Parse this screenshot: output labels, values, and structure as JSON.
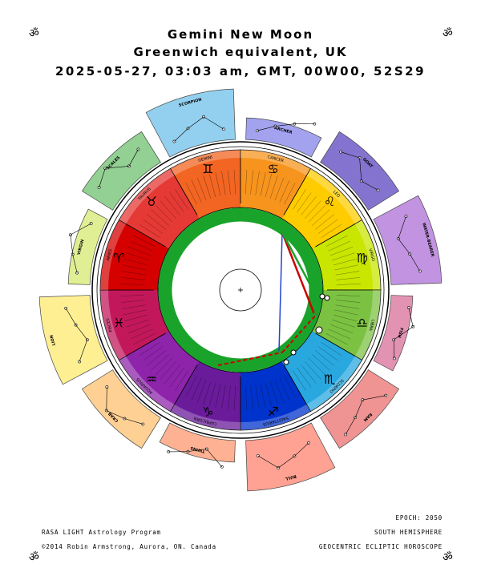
{
  "header": {
    "line1": "Gemini New Moon",
    "line2": "Greenwich equivalent, UK",
    "line3": "2025-05-27, 03:03 am, GMT,  00W00, 52S29"
  },
  "corner_symbol": "ॐ",
  "footer": {
    "epoch": "EPOCH: 2050",
    "program": "RASA LIGHT Astrology Program",
    "hemisphere": "SOUTH HEMISPHERE",
    "copyright": "©2014 Robin Armstrong, Aurora, ON. Canada",
    "projection": "GEOCENTRIC ECLIPTIC HOROSCOPE"
  },
  "wheel": {
    "signs": [
      {
        "name": "GEMINI",
        "glyph": "♊",
        "color": "#f26522"
      },
      {
        "name": "CANCER",
        "glyph": "♋",
        "color": "#f7941d"
      },
      {
        "name": "LEO",
        "glyph": "♌",
        "color": "#ffcc00"
      },
      {
        "name": "VIRGO",
        "glyph": "♍",
        "color": "#c8e600"
      },
      {
        "name": "LIBRA",
        "glyph": "♎",
        "color": "#7cc242"
      },
      {
        "name": "SCORPIO",
        "glyph": "♏",
        "color": "#29a8e0"
      },
      {
        "name": "SAGITTARIUS",
        "glyph": "♐",
        "color": "#0033cc"
      },
      {
        "name": "CAPRICORN",
        "glyph": "♑",
        "color": "#6a1b9a"
      },
      {
        "name": "AQUARIUS",
        "glyph": "♒",
        "color": "#8e24aa"
      },
      {
        "name": "PISCES",
        "glyph": "♓",
        "color": "#c2185b"
      },
      {
        "name": "ARIES",
        "glyph": "♈",
        "color": "#d50000"
      },
      {
        "name": "TAURUS",
        "glyph": "♉",
        "color": "#e53935"
      }
    ],
    "constellations": [
      {
        "name": "ARCHER",
        "color": "#9999ee"
      },
      {
        "name": "GOAT",
        "color": "#7766cc"
      },
      {
        "name": "WATER-BEARER",
        "color": "#bb88dd"
      },
      {
        "name": "FISH",
        "color": "#e088aa"
      },
      {
        "name": "RAM",
        "color": "#ee8888"
      },
      {
        "name": "BULL",
        "color": "#ff9988"
      },
      {
        "name": "TWINS",
        "color": "#ffaa88"
      },
      {
        "name": "CRAB",
        "color": "#ffcc88"
      },
      {
        "name": "LION",
        "color": "#ffee88"
      },
      {
        "name": "VIRGIN",
        "color": "#ddee88"
      },
      {
        "name": "SCALES",
        "color": "#88cc88"
      },
      {
        "name": "SCORPION",
        "color": "#88ccee"
      }
    ]
  }
}
